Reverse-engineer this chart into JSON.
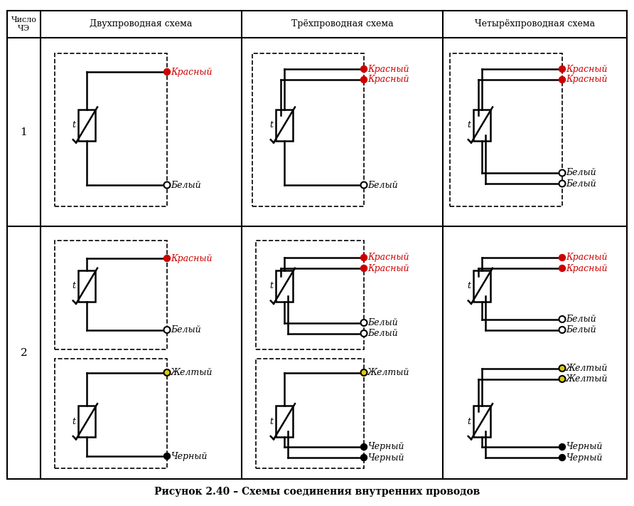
{
  "title": "Рисунок 2.40 – Схемы соединения внутренних проводов",
  "col_headers": [
    "Двухпроводная схема",
    "Трёхпроводная схема",
    "Четырёхпроводная схема"
  ],
  "background": "#ffffff",
  "line_color": "#000000",
  "red_dot_color": "#cc0000",
  "yellow_dot_color": "#cccc00",
  "label_red": "Красный",
  "label_white": "Белый",
  "label_yellow": "Желтый",
  "label_black": "Черный"
}
